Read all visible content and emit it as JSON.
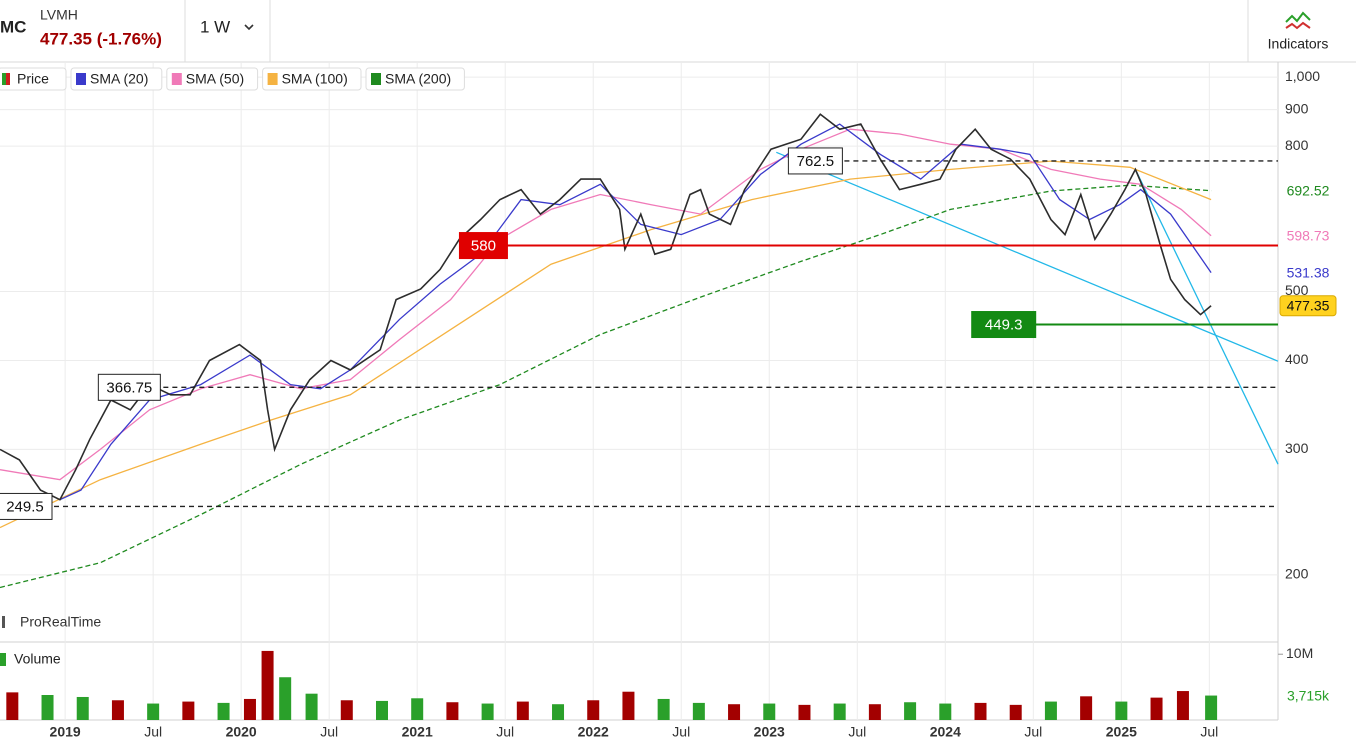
{
  "header": {
    "symbol": "MC",
    "name": "LVMH",
    "quote": "477.35 (-1.76%)",
    "interval": "1 W",
    "indicators": "Indicators",
    "watermark": "ProRealTime"
  },
  "chart_data": [
    {
      "type": "line",
      "log_scale": true,
      "grid": true,
      "xlim": [
        2018.63,
        2025.89
      ],
      "ylim": [
        162,
        1050
      ],
      "xticks": [
        {
          "value": 2019,
          "label": "2019"
        },
        {
          "value": 2019.5,
          "label": "Jul"
        },
        {
          "value": 2020,
          "label": "2020"
        },
        {
          "value": 2020.5,
          "label": "Jul"
        },
        {
          "value": 2021,
          "label": "2021"
        },
        {
          "value": 2021.5,
          "label": "Jul"
        },
        {
          "value": 2022,
          "label": "2022"
        },
        {
          "value": 2022.5,
          "label": "Jul"
        },
        {
          "value": 2023,
          "label": "2023"
        },
        {
          "value": 2023.5,
          "label": "Jul"
        },
        {
          "value": 2024,
          "label": "2024"
        },
        {
          "value": 2024.5,
          "label": "Jul"
        },
        {
          "value": 2025,
          "label": "2025"
        },
        {
          "value": 2025.5,
          "label": "Jul"
        }
      ],
      "yticks": [
        200,
        300,
        400,
        500,
        800,
        900,
        {
          "value": 1000,
          "label": "1,000"
        }
      ],
      "series": [
        {
          "name": "Price",
          "color": "#2d2d2d",
          "x": [
            2018.63,
            2018.74,
            2018.86,
            2018.97,
            2019.06,
            2019.14,
            2019.26,
            2019.37,
            2019.48,
            2019.6,
            2019.71,
            2019.82,
            2019.99,
            2020.11,
            2020.15,
            2020.19,
            2020.28,
            2020.39,
            2020.51,
            2020.62,
            2020.79,
            2020.88,
            2021.02,
            2021.13,
            2021.24,
            2021.36,
            2021.47,
            2021.59,
            2021.7,
            2021.81,
            2021.93,
            2022.04,
            2022.15,
            2022.18,
            2022.27,
            2022.35,
            2022.44,
            2022.55,
            2022.61,
            2022.66,
            2022.78,
            2022.86,
            2023.01,
            2023.18,
            2023.29,
            2023.4,
            2023.52,
            2023.63,
            2023.74,
            2023.86,
            2023.97,
            2024.06,
            2024.17,
            2024.26,
            2024.37,
            2024.48,
            2024.6,
            2024.68,
            2024.77,
            2024.85,
            2024.94,
            2025.02,
            2025.08,
            2025.14,
            2025.22,
            2025.28,
            2025.36,
            2025.45,
            2025.51
          ],
          "values": [
            300,
            290,
            263,
            255,
            281,
            310,
            352,
            341,
            370,
            358,
            358,
            400,
            421,
            400,
            341,
            300,
            341,
            376,
            400,
            388,
            414,
            487,
            504,
            537,
            592,
            631,
            673,
            695,
            642,
            673,
            719,
            719,
            652,
            573,
            642,
            564,
            573,
            684,
            695,
            642,
            621,
            695,
            792,
            818,
            887,
            845,
            859,
            767,
            695,
            707,
            719,
            792,
            845,
            792,
            767,
            719,
            631,
            601,
            684,
            592,
            642,
            695,
            742,
            684,
            582,
            520,
            487,
            464,
            477.35
          ]
        },
        {
          "name": "SMA (20)",
          "color": "#3a3acb",
          "x": [
            2018.97,
            2019.09,
            2019.26,
            2019.48,
            2019.77,
            2020.05,
            2020.28,
            2020.45,
            2020.62,
            2020.9,
            2021.13,
            2021.36,
            2021.59,
            2021.81,
            2022.04,
            2022.27,
            2022.5,
            2022.72,
            2022.95,
            2023.18,
            2023.4,
            2023.63,
            2023.86,
            2024.09,
            2024.31,
            2024.48,
            2024.65,
            2024.82,
            2024.99,
            2025.11,
            2025.28,
            2025.51
          ],
          "values": [
            255,
            263,
            305,
            352,
            370,
            407,
            370,
            365,
            388,
            457,
            512,
            564,
            673,
            662,
            707,
            621,
            601,
            631,
            730,
            805,
            859,
            779,
            719,
            805,
            792,
            779,
            673,
            631,
            662,
            695,
            642,
            531.38
          ]
        },
        {
          "name": "SMA (50)",
          "color": "#f07ab8",
          "x": [
            2018.63,
            2018.97,
            2019.2,
            2019.48,
            2019.77,
            2020.05,
            2020.34,
            2020.62,
            2020.9,
            2021.19,
            2021.47,
            2021.76,
            2022.04,
            2022.33,
            2022.61,
            2022.95,
            2023.18,
            2023.46,
            2023.74,
            2024.03,
            2024.31,
            2024.6,
            2024.88,
            2025.11,
            2025.34,
            2025.51
          ],
          "values": [
            281,
            272,
            300,
            341,
            365,
            382,
            365,
            376,
            428,
            487,
            592,
            652,
            684,
            662,
            642,
            742,
            792,
            845,
            832,
            805,
            792,
            742,
            719,
            707,
            652,
            598.73
          ]
        },
        {
          "name": "SMA (100)",
          "color": "#f5b342",
          "x": [
            2018.63,
            2019.2,
            2019.77,
            2020.17,
            2020.62,
            2021.19,
            2021.76,
            2022.33,
            2022.9,
            2023.46,
            2024.03,
            2024.6,
            2025.05,
            2025.51
          ],
          "values": [
            233,
            272,
            305,
            330,
            358,
            442,
            546,
            611,
            673,
            719,
            742,
            762,
            747,
            673
          ]
        },
        {
          "name": "SMA (200)",
          "color": "#1f8a1f",
          "dashed": true,
          "x": [
            2018.63,
            2019.2,
            2019.77,
            2020.34,
            2020.9,
            2021.47,
            2022.04,
            2022.61,
            2023.18,
            2023.63,
            2024.03,
            2024.6,
            2025.05,
            2025.51
          ],
          "values": [
            192,
            208,
            243,
            286,
            330,
            370,
            435,
            491,
            551,
            601,
            652,
            692,
            705,
            692.52
          ]
        }
      ],
      "levels": [
        {
          "value": 580,
          "start": 2021.24,
          "color": "#e00000",
          "style": "solid"
        },
        {
          "value": 449.3,
          "start": 2024.15,
          "color": "#138a13",
          "style": "solid"
        },
        {
          "value": 762.5,
          "start": 2023.12,
          "color": "#222222",
          "style": "dashed"
        },
        {
          "value": 366.75,
          "start": 2019.2,
          "color": "#222222",
          "style": "dashed"
        },
        {
          "value": 249.5,
          "start": 2018.63,
          "color": "#222222",
          "style": "dashed"
        }
      ],
      "trendlines": [
        {
          "color": "#22b8e8",
          "x": [
            2023.04,
            2025.89
          ],
          "values": [
            784,
            399
          ]
        },
        {
          "color": "#22b8e8",
          "x": [
            2025.08,
            2025.89
          ],
          "values": [
            742,
            286
          ]
        }
      ]
    },
    {
      "type": "bar",
      "title": "Volume",
      "ylim": [
        0,
        11.4
      ],
      "yticks": [
        {
          "value": 10,
          "label": "10M"
        }
      ],
      "x": [
        2018.7,
        2018.9,
        2019.1,
        2019.3,
        2019.5,
        2019.7,
        2019.9,
        2020.05,
        2020.15,
        2020.25,
        2020.4,
        2020.6,
        2020.8,
        2021.0,
        2021.2,
        2021.4,
        2021.6,
        2021.8,
        2022.0,
        2022.2,
        2022.4,
        2022.6,
        2022.8,
        2023.0,
        2023.2,
        2023.4,
        2023.6,
        2023.8,
        2024.0,
        2024.2,
        2024.4,
        2024.6,
        2024.8,
        2025.0,
        2025.2,
        2025.35,
        2025.51
      ],
      "values": [
        4.2,
        3.8,
        3.5,
        3.0,
        2.5,
        2.8,
        2.6,
        3.2,
        10.5,
        6.5,
        4.0,
        3.0,
        2.9,
        3.3,
        2.7,
        2.5,
        2.8,
        2.4,
        3.0,
        4.3,
        3.2,
        2.6,
        2.4,
        2.5,
        2.3,
        2.5,
        2.4,
        2.7,
        2.5,
        2.6,
        2.3,
        2.8,
        3.6,
        2.8,
        3.4,
        4.4,
        3.715
      ],
      "value_labels": [
        null,
        null,
        null,
        null,
        null,
        null,
        null,
        null,
        null,
        null,
        null,
        null,
        null,
        null,
        null,
        null,
        null,
        null,
        null,
        null,
        null,
        null,
        null,
        null,
        null,
        null,
        null,
        null,
        null,
        null,
        null,
        null,
        null,
        null,
        null,
        null,
        "3,715k"
      ],
      "colors": [
        "#a30000",
        "#2aa02a",
        "#2aa02a",
        "#a30000",
        "#2aa02a",
        "#a30000",
        "#2aa02a",
        "#a30000",
        "#a30000",
        "#2aa02a",
        "#2aa02a",
        "#a30000",
        "#2aa02a",
        "#2aa02a",
        "#a30000",
        "#2aa02a",
        "#a30000",
        "#2aa02a",
        "#a30000",
        "#a30000",
        "#2aa02a",
        "#2aa02a",
        "#a30000",
        "#2aa02a",
        "#a30000",
        "#2aa02a",
        "#a30000",
        "#2aa02a",
        "#2aa02a",
        "#a30000",
        "#a30000",
        "#2aa02a",
        "#a30000",
        "#2aa02a",
        "#a30000",
        "#a30000",
        "#2aa02a"
      ]
    }
  ]
}
